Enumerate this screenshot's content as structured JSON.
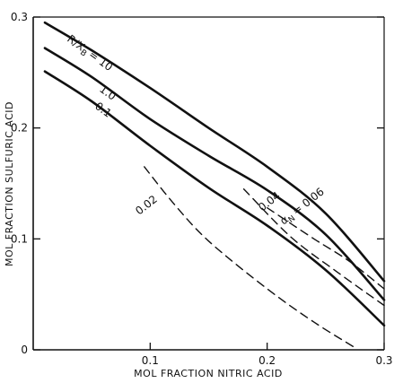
{
  "chart_data": {
    "type": "line",
    "xlabel": "MOL FRACTION NITRIC ACID",
    "ylabel": "MOL FRACTION SULFURIC ACID",
    "xlim": [
      0,
      0.3
    ],
    "ylim": [
      0,
      0.3
    ],
    "xticks": [
      "0.1",
      "0.2",
      "0.3"
    ],
    "yticks": [
      "0",
      "0.1",
      "0.2",
      "0.3"
    ],
    "grid": false,
    "series": [
      {
        "name": "R/X_B = 10",
        "style": "solid",
        "points": [
          [
            0.01,
            0.295
          ],
          [
            0.05,
            0.27
          ],
          [
            0.1,
            0.236
          ],
          [
            0.15,
            0.2
          ],
          [
            0.2,
            0.165
          ],
          [
            0.25,
            0.123
          ],
          [
            0.3,
            0.062
          ]
        ]
      },
      {
        "name": "1.0",
        "style": "solid",
        "points": [
          [
            0.01,
            0.272
          ],
          [
            0.05,
            0.246
          ],
          [
            0.1,
            0.208
          ],
          [
            0.15,
            0.175
          ],
          [
            0.2,
            0.144
          ],
          [
            0.25,
            0.104
          ],
          [
            0.3,
            0.045
          ]
        ]
      },
      {
        "name": "0.1",
        "style": "solid",
        "points": [
          [
            0.01,
            0.251
          ],
          [
            0.05,
            0.224
          ],
          [
            0.1,
            0.184
          ],
          [
            0.15,
            0.146
          ],
          [
            0.2,
            0.112
          ],
          [
            0.25,
            0.072
          ],
          [
            0.3,
            0.022
          ]
        ]
      },
      {
        "name": "0.02",
        "style": "dashed",
        "points": [
          [
            0.095,
            0.165
          ],
          [
            0.12,
            0.132
          ],
          [
            0.15,
            0.098
          ],
          [
            0.2,
            0.055
          ],
          [
            0.24,
            0.025
          ],
          [
            0.275,
            0.002
          ]
        ]
      },
      {
        "name": "0.04",
        "style": "dashed",
        "points": [
          [
            0.18,
            0.145
          ],
          [
            0.22,
            0.102
          ],
          [
            0.26,
            0.07
          ],
          [
            0.3,
            0.04
          ]
        ]
      },
      {
        "name": "α_N = 0.06",
        "style": "dashed",
        "points": [
          [
            0.2,
            0.128
          ],
          [
            0.24,
            0.1
          ],
          [
            0.27,
            0.08
          ],
          [
            0.3,
            0.055
          ]
        ]
      }
    ],
    "annotations": {
      "r_xb_prefix": "R/X",
      "r_xb_subscript": "B",
      "r_xb_value": "= 10",
      "label_1_0": "1.0",
      "label_0_1": "0.1",
      "label_0_02": "0.02",
      "label_0_04": "0.04",
      "alpha_prefix": "α",
      "alpha_subscript": "N",
      "alpha_value": "= 0.06"
    }
  }
}
